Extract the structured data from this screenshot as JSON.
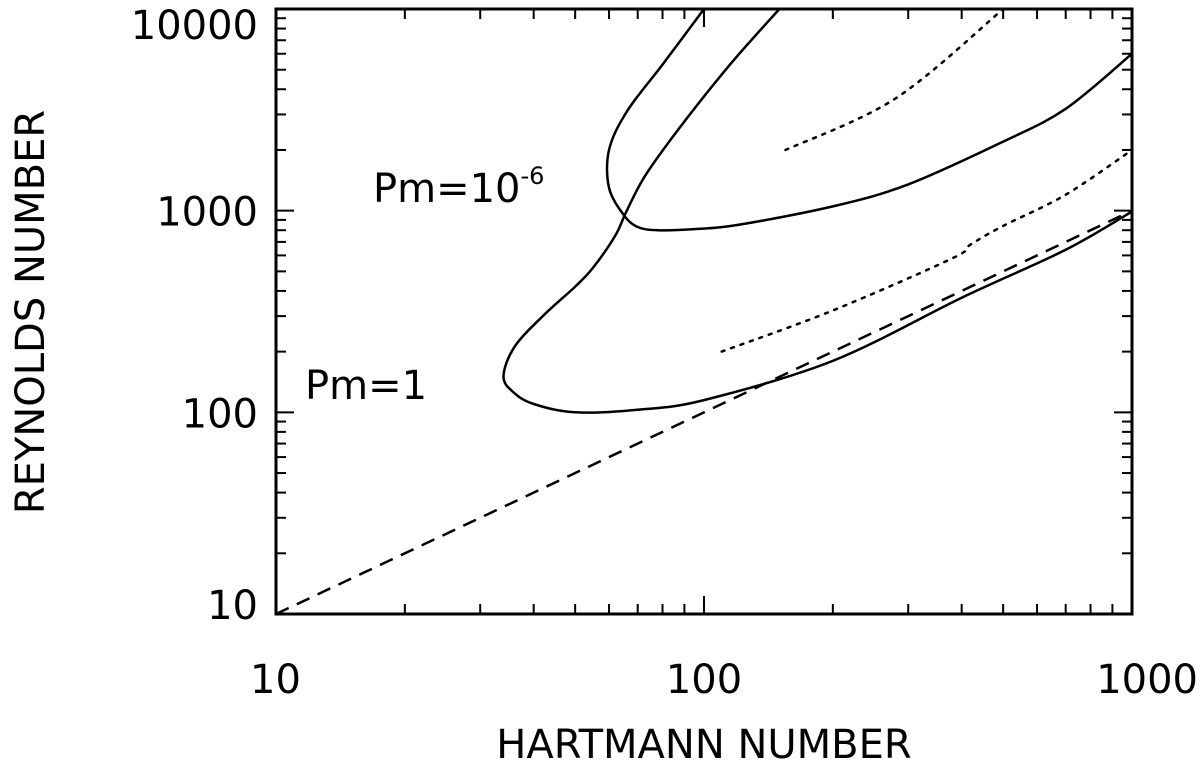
{
  "chart_data": {
    "type": "line",
    "title": "",
    "xlabel": "HARTMANN NUMBER",
    "ylabel": "REYNOLDS NUMBER",
    "xscale": "log",
    "yscale": "log",
    "xlim": [
      10,
      1000
    ],
    "ylim": [
      10,
      10000
    ],
    "x_ticks": [
      {
        "value": 10,
        "label": "10"
      },
      {
        "value": 100,
        "label": "100"
      },
      {
        "value": 1000,
        "label": "1000"
      }
    ],
    "y_ticks": [
      {
        "value": 10,
        "label": "10"
      },
      {
        "value": 100,
        "label": "100"
      },
      {
        "value": 1000,
        "label": "1000"
      },
      {
        "value": 10000,
        "label": "10000"
      }
    ],
    "grid": false,
    "annotations": [
      {
        "text": "Pm=10",
        "sup": "-6",
        "near": "upper-left of the Pm=10^-6 curve"
      },
      {
        "text": "Pm=1",
        "sup": "",
        "near": "left of the Pm=1 curve"
      }
    ],
    "series": [
      {
        "style": "solid",
        "points": [
          [
            150,
            10000
          ],
          [
            115,
            5300
          ],
          [
            88,
            2600
          ],
          [
            73,
            1500
          ],
          [
            66,
            1000
          ],
          [
            62,
            750
          ],
          [
            55,
            520
          ],
          [
            50,
            420
          ],
          [
            42,
            300
          ],
          [
            36,
            210
          ],
          [
            34,
            150
          ],
          [
            36,
            125
          ],
          [
            40,
            110
          ],
          [
            50,
            100
          ],
          [
            70,
            103
          ],
          [
            100,
            115
          ],
          [
            200,
            180
          ],
          [
            400,
            370
          ],
          [
            700,
            640
          ],
          [
            1000,
            990
          ]
        ]
      },
      {
        "style": "solid",
        "points": [
          [
            100,
            10000
          ],
          [
            80,
            5300
          ],
          [
            66,
            3100
          ],
          [
            60,
            2000
          ],
          [
            60,
            1300
          ],
          [
            65,
            950
          ],
          [
            70,
            830
          ],
          [
            78,
            800
          ],
          [
            95,
            810
          ],
          [
            120,
            850
          ],
          [
            200,
            1050
          ],
          [
            300,
            1350
          ],
          [
            500,
            2200
          ],
          [
            700,
            3200
          ],
          [
            1000,
            6000
          ]
        ]
      },
      {
        "style": "dashed",
        "points": [
          [
            10,
            10
          ],
          [
            1000,
            1000
          ]
        ]
      },
      {
        "style": "dotted",
        "points": [
          [
            155,
            2000
          ],
          [
            280,
            3600
          ],
          [
            500,
            10000
          ]
        ]
      },
      {
        "style": "dotted",
        "points": [
          [
            110,
            200
          ],
          [
            200,
            320
          ],
          [
            380,
            580
          ],
          [
            420,
            680
          ],
          [
            500,
            840
          ],
          [
            700,
            1200
          ],
          [
            1000,
            2000
          ]
        ]
      }
    ]
  }
}
